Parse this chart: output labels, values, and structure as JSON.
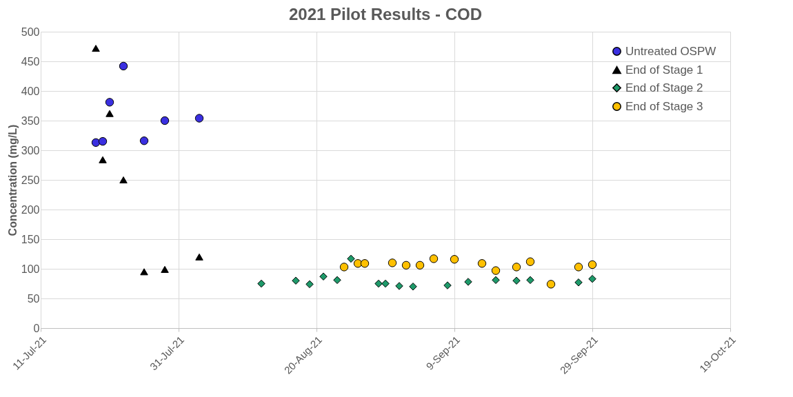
{
  "chart_data": {
    "type": "scatter",
    "title": "2021 Pilot Results - COD",
    "ylabel": "Concentration (mg/L)",
    "series": [
      {
        "name": "Untreated OSPW",
        "color": "#3a2fe0",
        "marker": "circle",
        "x": [
          "2021-07-19",
          "2021-07-20",
          "2021-07-21",
          "2021-07-23",
          "2021-07-26",
          "2021-07-29",
          "2021-08-03"
        ],
        "values": [
          313,
          315,
          381,
          442,
          316,
          350,
          354
        ]
      },
      {
        "name": "End of Stage 1",
        "color": "#000000",
        "marker": "triangle",
        "x": [
          "2021-07-19",
          "2021-07-20",
          "2021-07-21",
          "2021-07-23",
          "2021-07-26",
          "2021-07-29",
          "2021-08-03"
        ],
        "values": [
          472,
          284,
          362,
          250,
          95,
          99,
          120
        ]
      },
      {
        "name": "End of Stage 2",
        "color": "#1e9a6a",
        "marker": "diamond",
        "x": [
          "2021-08-12",
          "2021-08-17",
          "2021-08-19",
          "2021-08-21",
          "2021-08-23",
          "2021-08-25",
          "2021-08-29",
          "2021-08-30",
          "2021-09-01",
          "2021-09-03",
          "2021-09-08",
          "2021-09-11",
          "2021-09-15",
          "2021-09-18",
          "2021-09-20",
          "2021-09-27",
          "2021-09-29"
        ],
        "values": [
          75,
          80,
          74,
          87,
          81,
          117,
          75,
          75,
          71,
          70,
          72,
          78,
          81,
          80,
          81,
          77,
          83
        ]
      },
      {
        "name": "End of Stage 3",
        "color": "#ffc000",
        "marker": "circle",
        "x": [
          "2021-08-24",
          "2021-08-26",
          "2021-08-27",
          "2021-08-31",
          "2021-09-02",
          "2021-09-04",
          "2021-09-06",
          "2021-09-09",
          "2021-09-13",
          "2021-09-15",
          "2021-09-18",
          "2021-09-20",
          "2021-09-23",
          "2021-09-27",
          "2021-09-29"
        ],
        "values": [
          103,
          109,
          109,
          110,
          106,
          106,
          117,
          116,
          109,
          97,
          103,
          112,
          74,
          103,
          107
        ]
      }
    ],
    "xlim": [
      "2021-07-11",
      "2021-10-19"
    ],
    "xticks": [
      {
        "value": "2021-07-11",
        "label": "11-Jul-21"
      },
      {
        "value": "2021-07-31",
        "label": "31-Jul-21"
      },
      {
        "value": "2021-08-20",
        "label": "20-Aug-21"
      },
      {
        "value": "2021-09-09",
        "label": "9-Sep-21"
      },
      {
        "value": "2021-09-29",
        "label": "29-Sep-21"
      },
      {
        "value": "2021-10-19",
        "label": "19-Oct-21"
      }
    ],
    "ylim": [
      0,
      500
    ],
    "yticks": [
      0,
      50,
      100,
      150,
      200,
      250,
      300,
      350,
      400,
      450,
      500
    ],
    "grid": true,
    "legend": "top right"
  }
}
